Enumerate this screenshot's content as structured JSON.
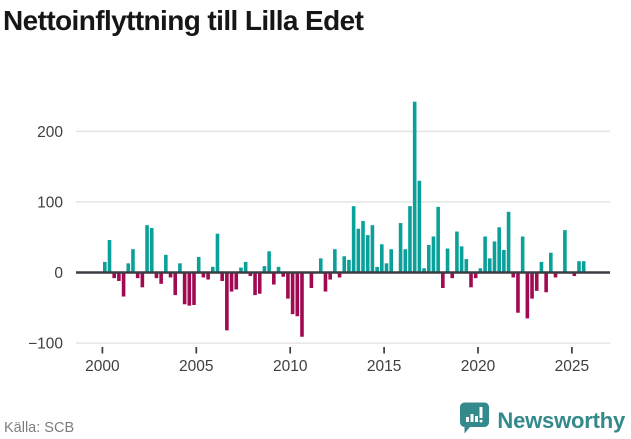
{
  "title": "Nettoinflyttning till Lilla Edet",
  "source": "Källa: SCB",
  "brand": {
    "name": "Newsworthy",
    "color": "#34898b"
  },
  "colors": {
    "positive_bar": "#0aa19a",
    "negative_bar": "#a10a50",
    "zero_line": "#3a3d41",
    "gridline": "#e4e4e4",
    "axis_text": "#3f3f3f",
    "tick_mark": "#3c3c3c",
    "source_text": "#7d7d7d",
    "background": "#ffffff"
  },
  "chart_data": {
    "type": "bar",
    "title": "Nettoinflyttning till Lilla Edet",
    "frequency": "quarterly",
    "xlabel": "",
    "ylabel": "",
    "x_tick_years": [
      2000,
      2005,
      2010,
      2015,
      2020,
      2025
    ],
    "y_ticks": [
      200,
      100,
      0,
      -100
    ],
    "ylim": [
      -110,
      255
    ],
    "grid": true,
    "legend": false,
    "series": [
      {
        "year": 2000,
        "q": [
          15,
          46,
          -8,
          -12
        ]
      },
      {
        "year": 2001,
        "q": [
          -34,
          13,
          33,
          -8
        ]
      },
      {
        "year": 2002,
        "q": [
          -21,
          67,
          63,
          -8
        ]
      },
      {
        "year": 2003,
        "q": [
          -16,
          25,
          -7,
          -32
        ]
      },
      {
        "year": 2004,
        "q": [
          13,
          -45,
          -47,
          -46
        ]
      },
      {
        "year": 2005,
        "q": [
          22,
          -7,
          -10,
          8
        ]
      },
      {
        "year": 2006,
        "q": [
          55,
          -12,
          -82,
          -27
        ]
      },
      {
        "year": 2007,
        "q": [
          -24,
          7,
          15,
          -5
        ]
      },
      {
        "year": 2008,
        "q": [
          -32,
          -30,
          9,
          30
        ]
      },
      {
        "year": 2009,
        "q": [
          -17,
          8,
          -6,
          -37
        ]
      },
      {
        "year": 2010,
        "q": [
          -59,
          -62,
          -91,
          0
        ]
      },
      {
        "year": 2011,
        "q": [
          -22,
          0,
          20,
          -27
        ]
      },
      {
        "year": 2012,
        "q": [
          -10,
          33,
          -7,
          23
        ]
      },
      {
        "year": 2013,
        "q": [
          18,
          94,
          62,
          73
        ]
      },
      {
        "year": 2014,
        "q": [
          53,
          67,
          8,
          40
        ]
      },
      {
        "year": 2015,
        "q": [
          13,
          33,
          0,
          70
        ]
      },
      {
        "year": 2016,
        "q": [
          33,
          94,
          242,
          130
        ]
      },
      {
        "year": 2017,
        "q": [
          6,
          39,
          51,
          93
        ]
      },
      {
        "year": 2018,
        "q": [
          -22,
          34,
          -8,
          58
        ]
      },
      {
        "year": 2019,
        "q": [
          37,
          19,
          -21,
          -8
        ]
      },
      {
        "year": 2020,
        "q": [
          6,
          51,
          20,
          44
        ]
      },
      {
        "year": 2021,
        "q": [
          64,
          32,
          86,
          -7
        ]
      },
      {
        "year": 2022,
        "q": [
          -57,
          51,
          -65,
          -37
        ]
      },
      {
        "year": 2023,
        "q": [
          -26,
          15,
          -28,
          28
        ]
      },
      {
        "year": 2024,
        "q": [
          -7,
          0,
          60,
          0
        ]
      },
      {
        "year": 2025,
        "q": [
          -5,
          16,
          16
        ]
      }
    ]
  }
}
